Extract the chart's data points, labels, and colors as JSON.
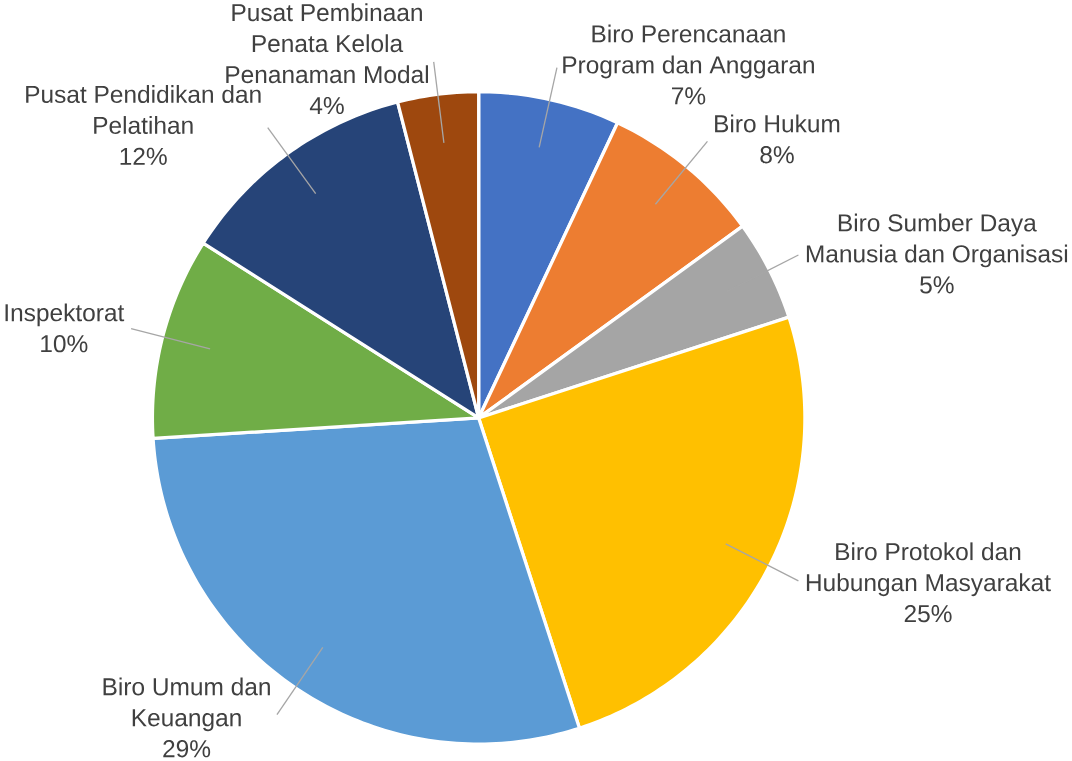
{
  "chart_data": {
    "type": "pie",
    "categories": [
      "Biro Perencanaan Program dan Anggaran",
      "Biro Hukum",
      "Biro Sumber Daya Manusia dan Organisasi",
      "Biro Protokol dan Hubungan Masyarakat",
      "Biro Umum dan Keuangan",
      "Inspektorat",
      "Pusat Pendidikan dan Pelatihan",
      "Pusat Pembinaan Penata Kelola Penanaman Modal"
    ],
    "values": [
      7,
      8,
      5,
      25,
      29,
      10,
      12,
      4
    ],
    "value_labels": [
      "7%",
      "8%",
      "5%",
      "25%",
      "29%",
      "10%",
      "12%",
      "4%"
    ],
    "colors": [
      "#4472c4",
      "#ed7d31",
      "#a5a5a5",
      "#ffc000",
      "#5b9bd5",
      "#70ad47",
      "#264478",
      "#9e480e"
    ]
  }
}
